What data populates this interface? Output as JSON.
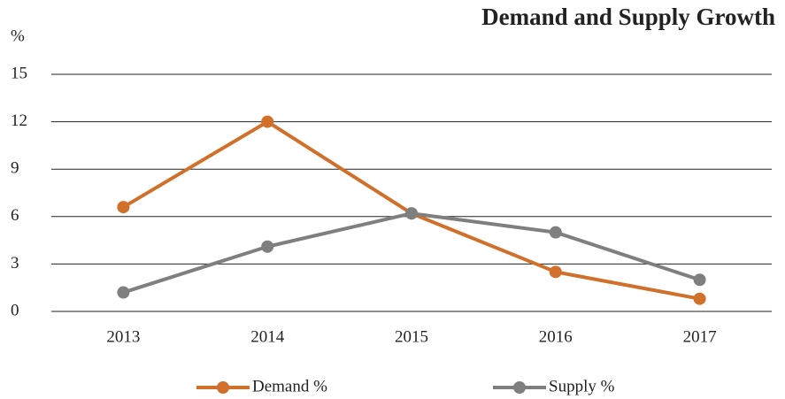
{
  "chart_data": {
    "type": "line",
    "title": "Demand and Supply Growth",
    "y_label": "%",
    "categories": [
      "2013",
      "2014",
      "2015",
      "2016",
      "2017"
    ],
    "series": [
      {
        "name": "Demand %",
        "color": "#d0702a",
        "values": [
          6.6,
          12.0,
          6.2,
          2.5,
          0.8
        ]
      },
      {
        "name": "Supply %",
        "color": "#7f7f7f",
        "values": [
          1.2,
          4.1,
          6.2,
          5.0,
          2.0
        ]
      }
    ],
    "ylim": [
      0,
      15
    ],
    "yticks": [
      0,
      3,
      6,
      9,
      12,
      15
    ],
    "grid": true,
    "legend": "bottom"
  }
}
